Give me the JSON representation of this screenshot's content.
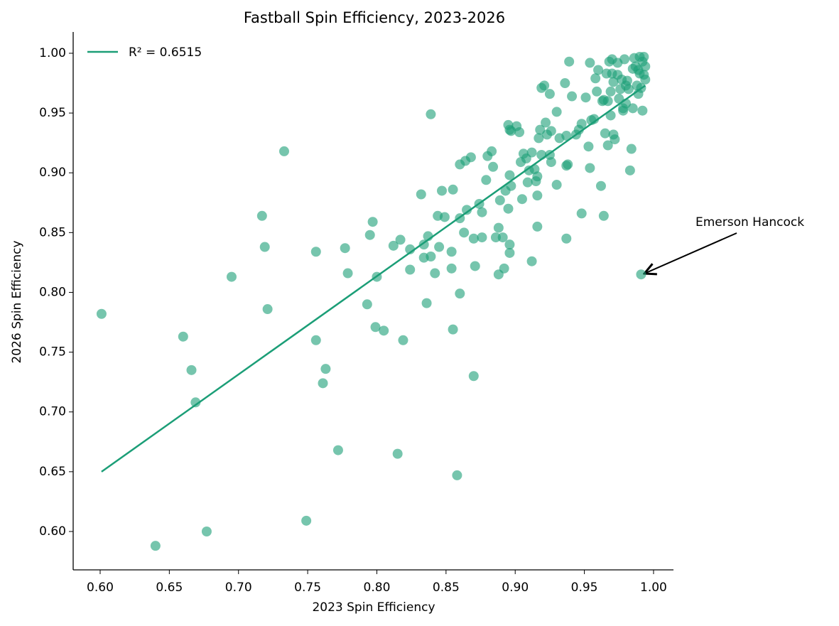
{
  "chart_data": {
    "type": "scatter",
    "title": "Fastball Spin Efficiency, 2023-2026",
    "xlabel": "2023 Spin Efficiency",
    "ylabel": "2026 Spin Efficiency",
    "color": "#1b9e77",
    "x": [
      0.601,
      0.64,
      0.66,
      0.666,
      0.669,
      0.677,
      0.695,
      0.717,
      0.719,
      0.721,
      0.733,
      0.749,
      0.756,
      0.756,
      0.761,
      0.763,
      0.772,
      0.777,
      0.779,
      0.793,
      0.795,
      0.797,
      0.799,
      0.8,
      0.805,
      0.812,
      0.815,
      0.817,
      0.819,
      0.824,
      0.824,
      0.832,
      0.834,
      0.834,
      0.836,
      0.837,
      0.839,
      0.839,
      0.842,
      0.844,
      0.845,
      0.847,
      0.849,
      0.854,
      0.854,
      0.855,
      0.855,
      0.858,
      0.86,
      0.86,
      0.86,
      0.863,
      0.864,
      0.865,
      0.868,
      0.87,
      0.87,
      0.871,
      0.874,
      0.876,
      0.876,
      0.879,
      0.88,
      0.883,
      0.884,
      0.886,
      0.888,
      0.888,
      0.889,
      0.891,
      0.892,
      0.893,
      0.895,
      0.895,
      0.896,
      0.896,
      0.896,
      0.896,
      0.897,
      0.897,
      0.901,
      0.903,
      0.904,
      0.905,
      0.906,
      0.908,
      0.909,
      0.91,
      0.912,
      0.912,
      0.914,
      0.915,
      0.916,
      0.916,
      0.916,
      0.917,
      0.918,
      0.919,
      0.919,
      0.921,
      0.922,
      0.923,
      0.925,
      0.925,
      0.926,
      0.926,
      0.93,
      0.93,
      0.932,
      0.936,
      0.937,
      0.937,
      0.937,
      0.938,
      0.939,
      0.941,
      0.944,
      0.946,
      0.948,
      0.948,
      0.951,
      0.953,
      0.954,
      0.954,
      0.955,
      0.957,
      0.958,
      0.959,
      0.96,
      0.962,
      0.963,
      0.964,
      0.964,
      0.965,
      0.966,
      0.967,
      0.967,
      0.968,
      0.969,
      0.969,
      0.97,
      0.97,
      0.971,
      0.971,
      0.972,
      0.974,
      0.974,
      0.975,
      0.976,
      0.977,
      0.978,
      0.978,
      0.979,
      0.98,
      0.98,
      0.981,
      0.982,
      0.983,
      0.984,
      0.985,
      0.985,
      0.986,
      0.987,
      0.988,
      0.989,
      0.989,
      0.99,
      0.99,
      0.991,
      0.991,
      0.992,
      0.992,
      0.993,
      0.993,
      0.994,
      0.994
    ],
    "y": [
      0.782,
      0.588,
      0.763,
      0.735,
      0.708,
      0.6,
      0.813,
      0.864,
      0.838,
      0.786,
      0.918,
      0.609,
      0.834,
      0.76,
      0.724,
      0.736,
      0.668,
      0.837,
      0.816,
      0.79,
      0.848,
      0.859,
      0.771,
      0.813,
      0.768,
      0.839,
      0.665,
      0.844,
      0.76,
      0.836,
      0.819,
      0.882,
      0.84,
      0.829,
      0.791,
      0.847,
      0.949,
      0.83,
      0.816,
      0.864,
      0.838,
      0.885,
      0.863,
      0.834,
      0.82,
      0.886,
      0.769,
      0.647,
      0.862,
      0.799,
      0.907,
      0.85,
      0.91,
      0.869,
      0.913,
      0.845,
      0.73,
      0.822,
      0.874,
      0.846,
      0.867,
      0.894,
      0.914,
      0.918,
      0.905,
      0.846,
      0.815,
      0.854,
      0.877,
      0.846,
      0.82,
      0.885,
      0.87,
      0.94,
      0.898,
      0.936,
      0.84,
      0.833,
      0.889,
      0.935,
      0.939,
      0.934,
      0.909,
      0.878,
      0.916,
      0.912,
      0.892,
      0.902,
      0.826,
      0.917,
      0.903,
      0.893,
      0.897,
      0.881,
      0.855,
      0.929,
      0.936,
      0.915,
      0.971,
      0.973,
      0.942,
      0.932,
      0.915,
      0.966,
      0.935,
      0.909,
      0.89,
      0.951,
      0.929,
      0.975,
      0.931,
      0.845,
      0.906,
      0.907,
      0.993,
      0.964,
      0.932,
      0.936,
      0.866,
      0.941,
      0.963,
      0.922,
      0.904,
      0.992,
      0.944,
      0.945,
      0.979,
      0.968,
      0.986,
      0.889,
      0.96,
      0.864,
      0.961,
      0.933,
      0.983,
      0.923,
      0.96,
      0.993,
      0.948,
      0.968,
      0.995,
      0.983,
      0.976,
      0.932,
      0.928,
      0.992,
      0.982,
      0.962,
      0.97,
      0.978,
      0.954,
      0.952,
      0.995,
      0.958,
      0.973,
      0.977,
      0.97,
      0.902,
      0.92,
      0.954,
      0.987,
      0.996,
      0.989,
      0.973,
      0.986,
      0.966,
      0.997,
      0.983,
      0.815,
      0.971,
      0.952,
      0.993,
      0.997,
      0.982,
      0.978,
      0.989
    ],
    "fit": {
      "name": "R² = 0.6515",
      "color": "#1b9e77",
      "x": [
        0.601,
        0.994
      ],
      "y": [
        0.65,
        0.973
      ]
    },
    "annotation": "Emerson Hancock",
    "xlim": [
      0.5805,
      1.0144
    ],
    "ylim": [
      0.5679,
      1.0178
    ],
    "xticks": [
      {
        "value": 0.6,
        "label": "0.60"
      },
      {
        "value": 0.65,
        "label": "0.65"
      },
      {
        "value": 0.7,
        "label": "0.70"
      },
      {
        "value": 0.75,
        "label": "0.75"
      },
      {
        "value": 0.8,
        "label": "0.80"
      },
      {
        "value": 0.85,
        "label": "0.85"
      },
      {
        "value": 0.9,
        "label": "0.90"
      },
      {
        "value": 0.95,
        "label": "0.95"
      },
      {
        "value": 1.0,
        "label": "1.00"
      }
    ],
    "yticks": [
      {
        "value": 0.6,
        "label": "0.60"
      },
      {
        "value": 0.65,
        "label": "0.65"
      },
      {
        "value": 0.7,
        "label": "0.70"
      },
      {
        "value": 0.75,
        "label": "0.75"
      },
      {
        "value": 0.8,
        "label": "0.80"
      },
      {
        "value": 0.85,
        "label": "0.85"
      },
      {
        "value": 0.9,
        "label": "0.90"
      },
      {
        "value": 0.95,
        "label": "0.95"
      },
      {
        "value": 1.0,
        "label": "1.00"
      }
    ],
    "legend": "upper left"
  }
}
